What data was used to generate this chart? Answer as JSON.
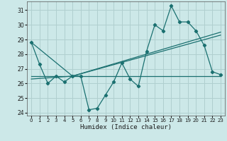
{
  "title": "",
  "xlabel": "Humidex (Indice chaleur)",
  "bg_color": "#cce8e8",
  "grid_color": "#b0cfcf",
  "line_color": "#1a7070",
  "x_data": [
    0,
    1,
    2,
    3,
    4,
    5,
    6,
    7,
    8,
    9,
    10,
    11,
    12,
    13,
    14,
    15,
    16,
    17,
    18,
    19,
    20,
    21,
    22,
    23
  ],
  "y_main": [
    28.8,
    27.3,
    26.0,
    26.5,
    26.1,
    26.5,
    26.5,
    24.2,
    24.3,
    25.2,
    26.1,
    27.4,
    26.3,
    25.8,
    28.2,
    30.0,
    29.6,
    31.3,
    30.2,
    30.2,
    29.6,
    28.6,
    26.8,
    26.6
  ],
  "ylim": [
    23.8,
    31.6
  ],
  "xlim": [
    -0.5,
    23.5
  ],
  "yticks": [
    24,
    25,
    26,
    27,
    28,
    29,
    30,
    31
  ],
  "xticks": [
    0,
    1,
    2,
    3,
    4,
    5,
    6,
    7,
    8,
    9,
    10,
    11,
    12,
    13,
    14,
    15,
    16,
    17,
    18,
    19,
    20,
    21,
    22,
    23
  ],
  "line1": {
    "x": [
      0,
      23
    ],
    "y": [
      26.5,
      26.5
    ]
  },
  "line2": {
    "x": [
      0,
      5,
      23
    ],
    "y": [
      28.8,
      26.5,
      29.5
    ]
  },
  "line3": {
    "x": [
      0,
      5,
      23
    ],
    "y": [
      26.3,
      26.5,
      29.3
    ]
  }
}
